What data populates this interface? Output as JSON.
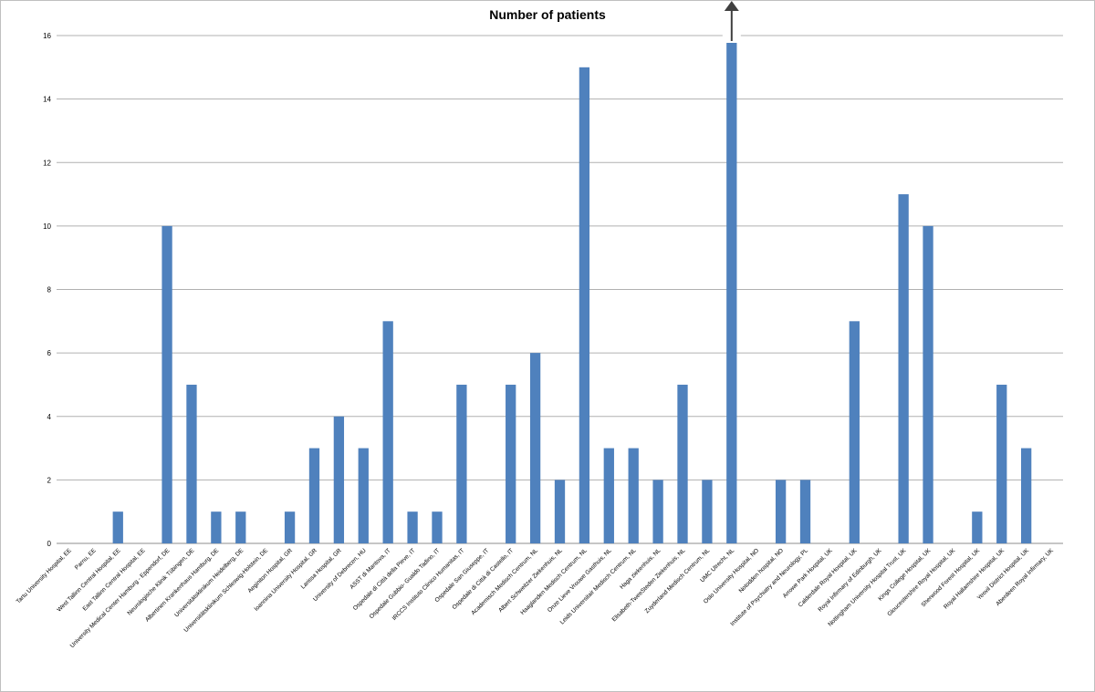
{
  "chart_data": {
    "type": "bar",
    "title": "Number of patients",
    "xlabel": "",
    "ylabel": "",
    "ylim": [
      0,
      16
    ],
    "yticks": [
      0,
      2,
      4,
      6,
      8,
      10,
      12,
      14,
      16
    ],
    "grid": true,
    "legend": "none",
    "bar_color": "#4f81bd",
    "overflow_arrow_color": "#404040",
    "overflow_category": "UMC Utrecht, NL",
    "categories": [
      "Tartu University Hospital, EE",
      "Parnu, EE",
      "West Tallinn Central Hospital, EE",
      "East Tallinn Central Hospital, EE",
      "University Medical Center Hamburg - Eppendorf, DE",
      "Neurologische Klinik Tübingen, DE",
      "Albertinen Krankenhaus Hamburg, DE",
      "Universitätsklinikum Heidelberg, DE",
      "Universitätsklinikum Schleswig-Holstein, DE",
      "Aeginiton Hospital, GR",
      "Ioannina University Hospital, GR",
      "Larissa Hospital, GR",
      "University of Debrecen, HU",
      "ASST di Mantova, IT",
      "Ospedale di Città della Pieve, IT",
      "Ospedale Gubbio- Gualdo Tadino, IT",
      "IRCCS Instituto Clinico Humanitas, IT",
      "Ospedale San Giuseppe, IT",
      "Ospedale di Città di Castello, IT",
      "Academisch Medisch Centrum, NL",
      "Albert Schweitzer Ziekenhuis, NL",
      "Haaglanden Medisch Centrum, NL",
      "Onze Lieve Vrouwe Gasthuis, NL",
      "Leids Universitair Medisch Centrum, NL",
      "Haga ziekenhuis, NL",
      "Elisabeth-TweeSteden Ziekenhuis, NL",
      "Zuyderland Medisch Centrum, NL",
      "UMC Utrecht, NL",
      "Oslo University Hospital, NO",
      "Notodden hospital, NO",
      "Institute of Psychiatry and Neurology, PL",
      "Arrowe Park Hospital, UK",
      "Calderdale Royal Hospital, UK",
      "Royal Infirmary of Edinburgh, UK",
      "Nottingham University Hospital Trust, UK",
      "Kings College Hospital, UK",
      "Gloucestershire Royal Hospital, UK",
      "Sherwood Forest Hospital, UK",
      "Royal Hallamshire Hospital, UK",
      "Yeovil District Hospital, UK",
      "Aberdeen Royal Infirmary, UK"
    ],
    "values": [
      0,
      0,
      1,
      0,
      10,
      5,
      1,
      1,
      0,
      1,
      3,
      4,
      3,
      7,
      1,
      1,
      5,
      0,
      5,
      6,
      2,
      15,
      3,
      3,
      2,
      5,
      2,
      16,
      0,
      2,
      2,
      0,
      7,
      0,
      11,
      10,
      0,
      1,
      5,
      3,
      0
    ]
  }
}
